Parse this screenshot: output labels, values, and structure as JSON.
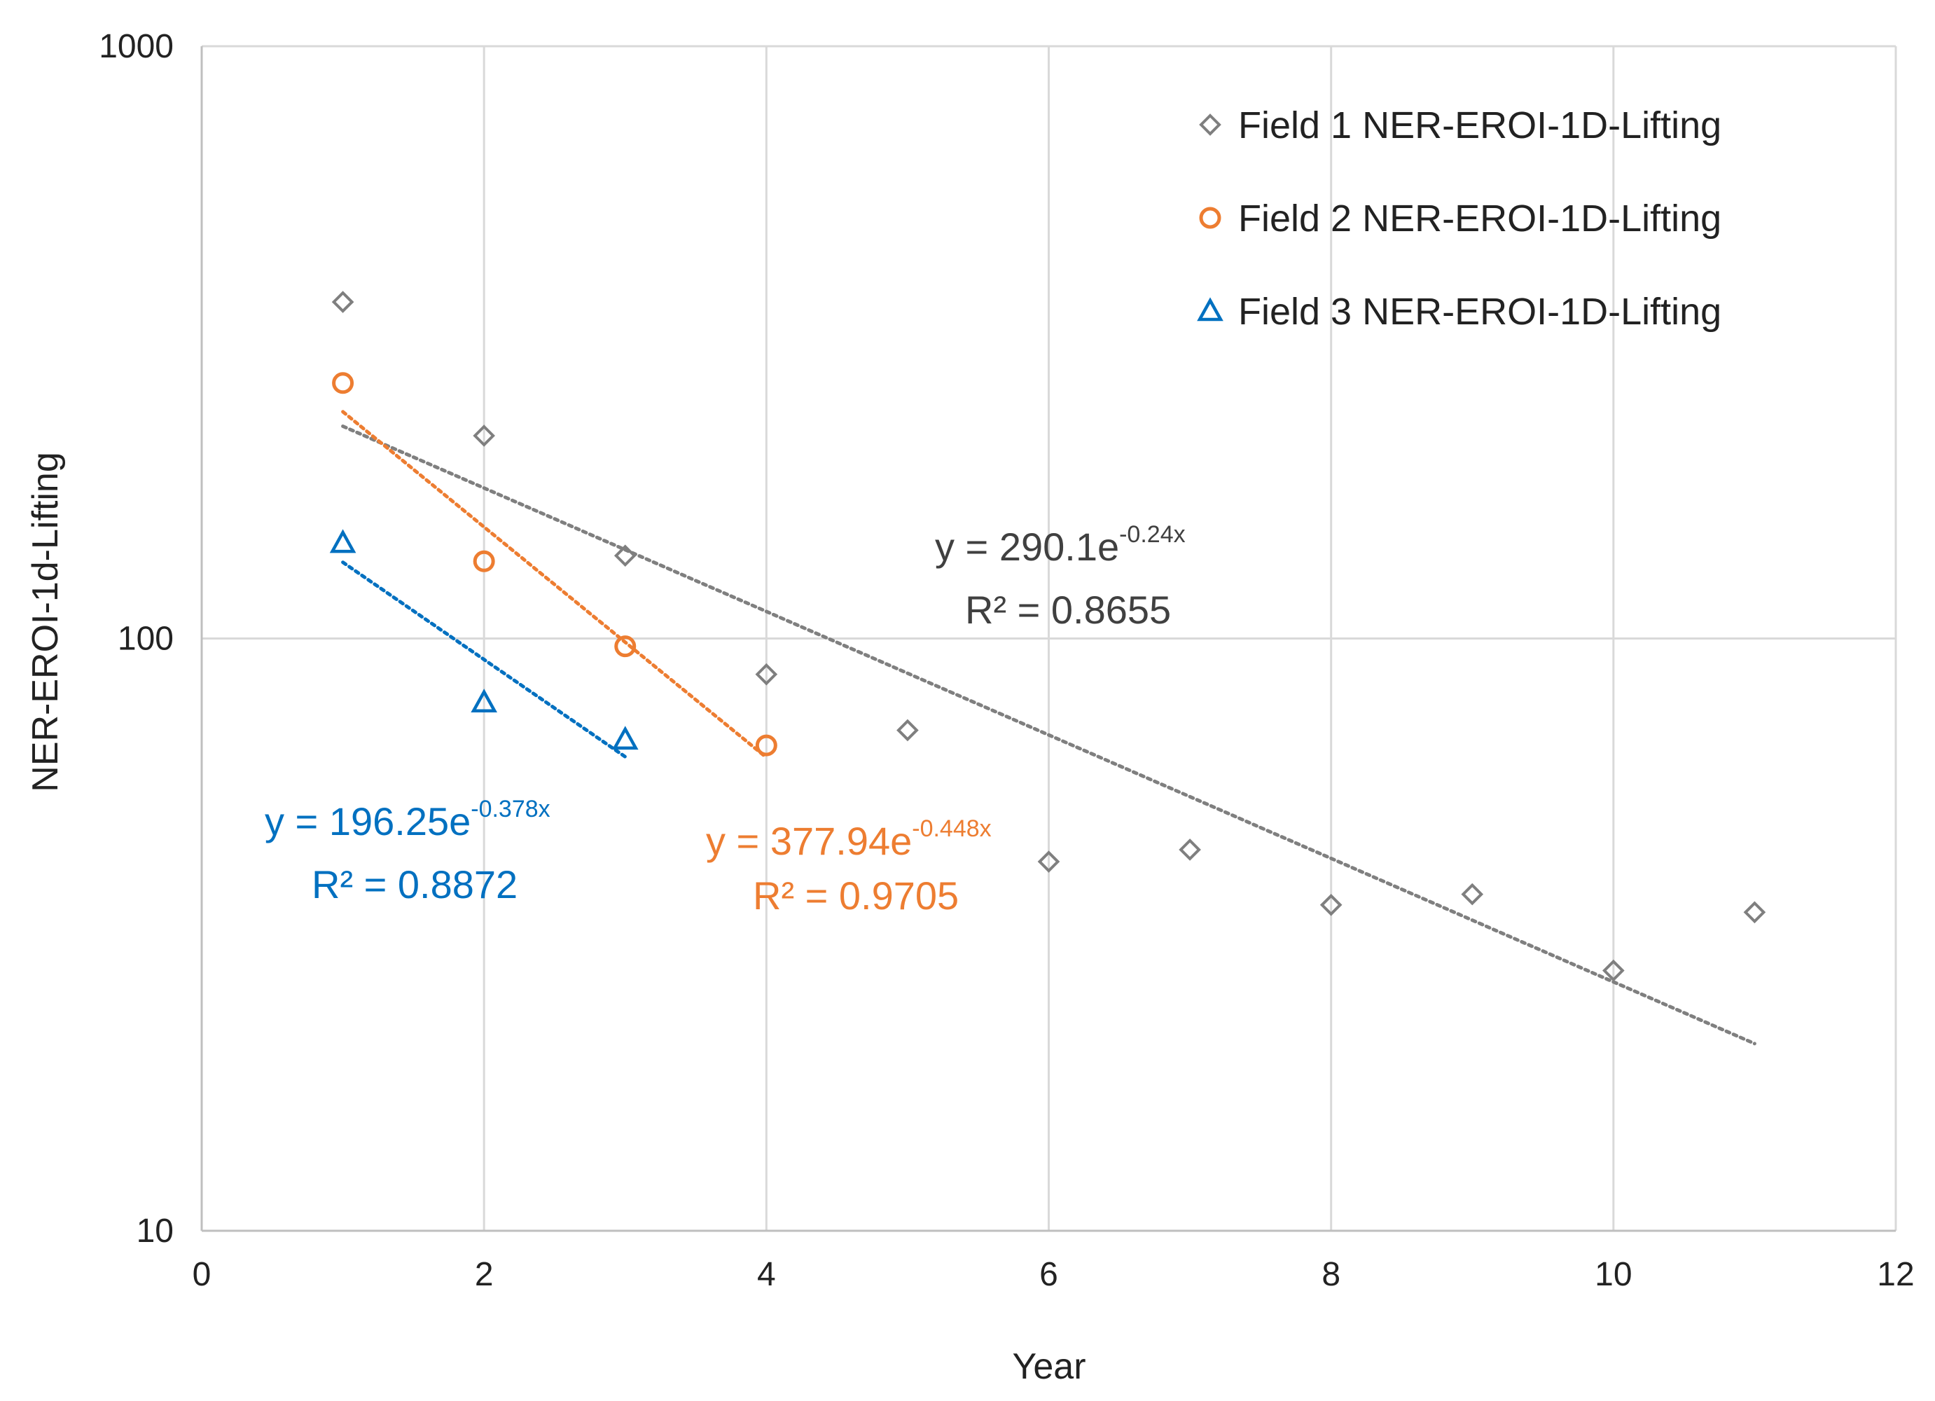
{
  "chart_data": {
    "type": "scatter",
    "xlabel": "Year",
    "ylabel": "NER-EROI-1d-Lifting",
    "xlim": [
      0,
      12
    ],
    "ylim": [
      10,
      1000
    ],
    "y_scale": "log",
    "x_ticks": [
      "0",
      "2",
      "4",
      "6",
      "8",
      "10",
      "12"
    ],
    "y_ticks": [
      "10",
      "100",
      "1000"
    ],
    "grid": true,
    "legend_position": "top-right",
    "series": [
      {
        "name": "Field 1 NER-EROI-1D-Lifting",
        "marker": "diamond",
        "color": "#7f7f7f",
        "x": [
          1,
          2,
          3,
          4,
          5,
          6,
          7,
          8,
          9,
          10,
          11
        ],
        "y": [
          370,
          220,
          138,
          87,
          70,
          42,
          44,
          35.5,
          37,
          27.5,
          34.5
        ],
        "trendline": {
          "equation_prefix": "y = 290.1e",
          "equation_exponent": "-0.24x",
          "r2": "R² = 0.8655",
          "a": 290.1,
          "b": -0.24,
          "x_range": [
            1,
            11
          ]
        }
      },
      {
        "name": "Field 2 NER-EROI-1D-Lifting",
        "marker": "circle",
        "color": "#ed7d31",
        "x": [
          1,
          2,
          3,
          4
        ],
        "y": [
          270,
          135,
          97,
          66
        ],
        "trendline": {
          "equation_prefix": "y = 377.94e",
          "equation_exponent": "-0.448x",
          "r2": "R² = 0.9705",
          "a": 377.94,
          "b": -0.448,
          "x_range": [
            1,
            4
          ]
        }
      },
      {
        "name": "Field 3 NER-EROI-1D-Lifting",
        "marker": "triangle",
        "color": "#0070c0",
        "x": [
          1,
          2,
          3
        ],
        "y": [
          145,
          78,
          67.5
        ],
        "trendline": {
          "equation_prefix": "y = 196.25e",
          "equation_exponent": "-0.378x",
          "r2": "R² = 0.8872",
          "a": 196.25,
          "b": -0.378,
          "x_range": [
            1,
            3
          ]
        }
      }
    ]
  }
}
